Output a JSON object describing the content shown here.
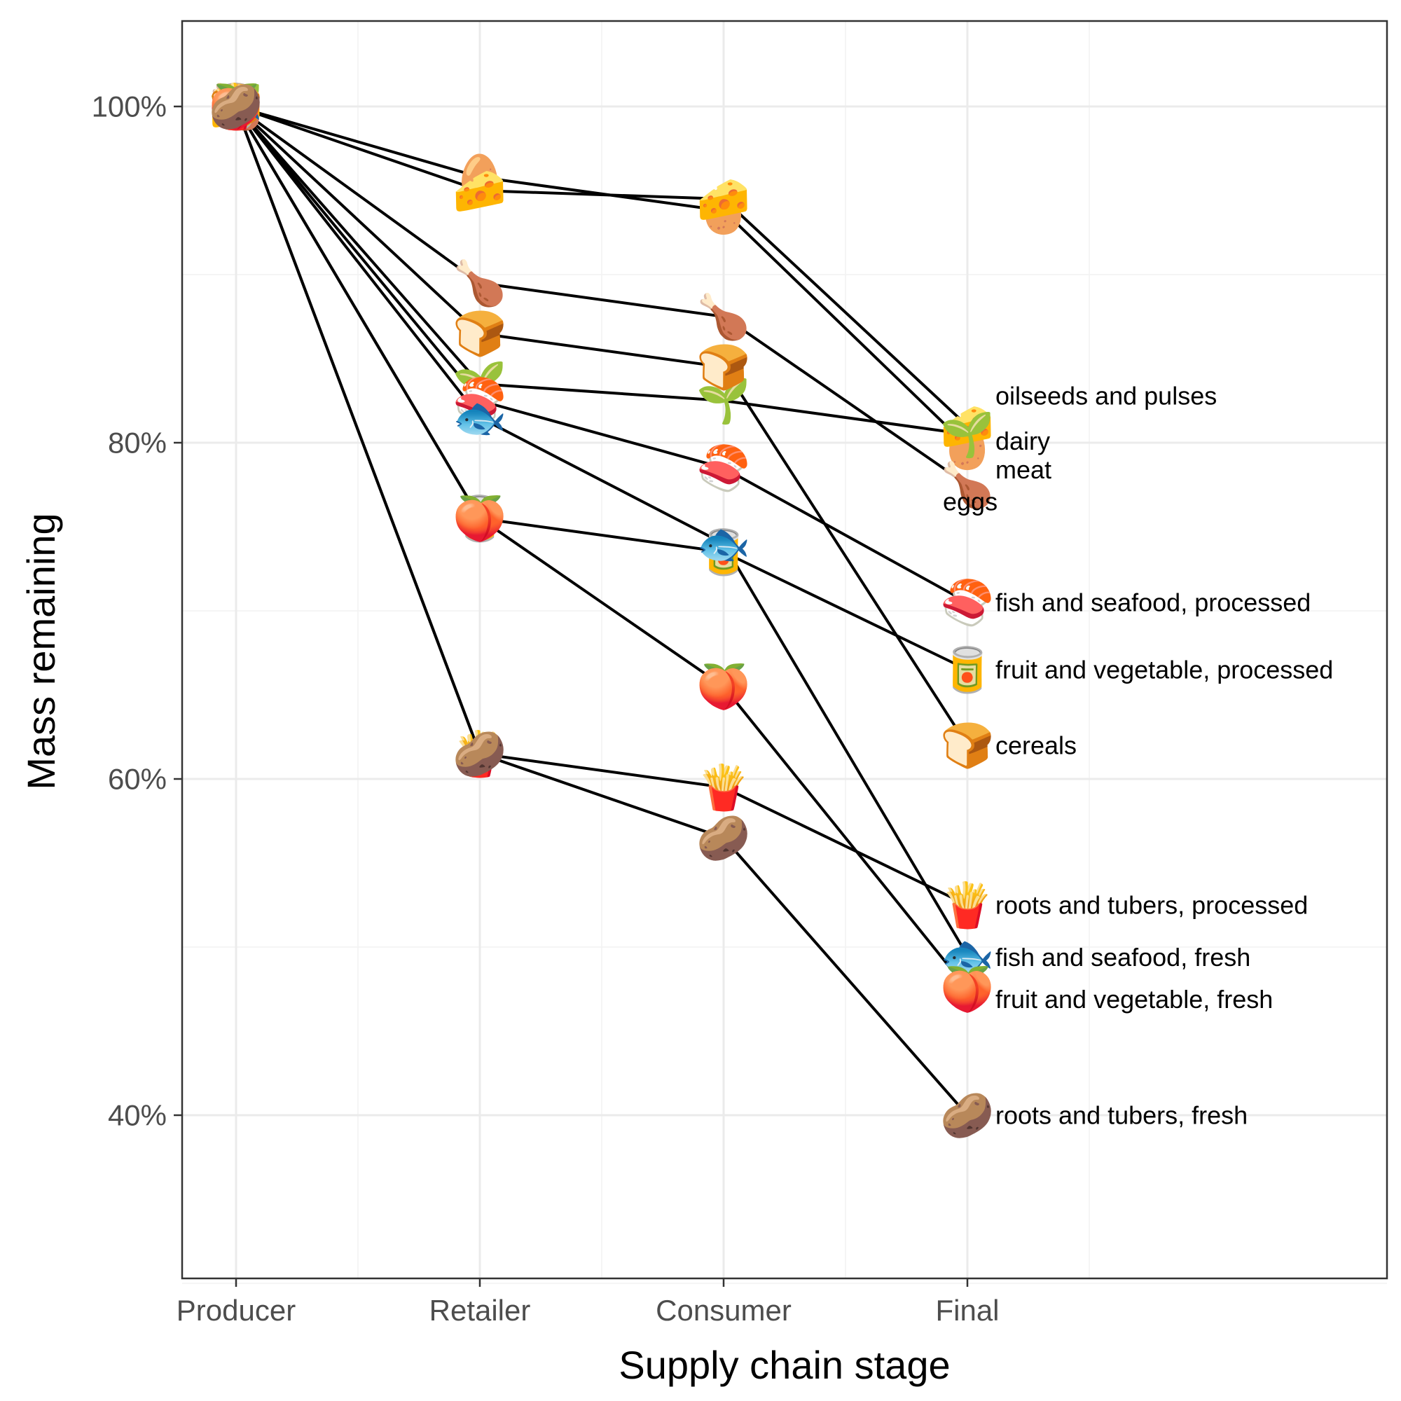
{
  "chart_data": {
    "type": "line",
    "xlabel": "Supply chain stage",
    "ylabel": "Mass remaining",
    "categories": [
      "Producer",
      "Retailer",
      "Consumer",
      "Final"
    ],
    "ylim": [
      30,
      105
    ],
    "yticks": [
      40,
      60,
      80,
      100
    ],
    "ytick_labels": [
      "40%",
      "60%",
      "80%",
      "100%"
    ],
    "grid": true,
    "colors": {
      "line": "#000000",
      "grid_major": "#ebebeb",
      "grid_minor": "#f2f2f2",
      "panel_border": "#333333"
    },
    "series": [
      {
        "name": "eggs",
        "icon": "egg-icon",
        "glyph": "🥚",
        "values": [
          100,
          95.8,
          93.8,
          79.8
        ],
        "label_offset": -3.3
      },
      {
        "name": "dairy",
        "icon": "cheese-icon",
        "glyph": "🧀",
        "values": [
          100,
          95.0,
          94.5,
          81.0
        ],
        "label_offset": -0.9
      },
      {
        "name": "oilseeds and pulses",
        "icon": "seedling-icon",
        "glyph": "🌱",
        "values": [
          100,
          83.5,
          82.5,
          80.5
        ],
        "label_offset": 2.3
      },
      {
        "name": "meat",
        "icon": "poultry-leg-icon",
        "glyph": "🍗",
        "values": [
          100,
          89.5,
          87.5,
          77.5
        ],
        "label_offset": 0.9
      },
      {
        "name": "fish and seafood, processed",
        "icon": "sushi-icon",
        "glyph": "🍣",
        "values": [
          100,
          82.5,
          78.5,
          70.5
        ],
        "label_offset": 0
      },
      {
        "name": "fruit and vegetable, processed",
        "icon": "canned-food-icon",
        "glyph": "🥫",
        "values": [
          100,
          75.5,
          73.5,
          66.5
        ],
        "label_offset": 0
      },
      {
        "name": "cereals",
        "icon": "bread-icon",
        "glyph": "🍞",
        "values": [
          100,
          86.5,
          84.5,
          62.0
        ],
        "label_offset": 0
      },
      {
        "name": "roots and tubers, processed",
        "icon": "fries-icon",
        "glyph": "🍟",
        "values": [
          100,
          61.5,
          59.5,
          52.5
        ],
        "label_offset": 0
      },
      {
        "name": "fish and seafood, fresh",
        "icon": "fish-icon",
        "glyph": "🐟",
        "values": [
          100,
          81.5,
          74.0,
          49.5
        ],
        "label_offset": -0.1
      },
      {
        "name": "fruit and vegetable, fresh",
        "icon": "peach-icon",
        "glyph": "🍑",
        "values": [
          100,
          75.5,
          65.5,
          47.5
        ],
        "label_offset": -0.6
      },
      {
        "name": "roots and tubers, fresh",
        "icon": "potato-icon",
        "glyph": "🥔",
        "values": [
          100,
          61.5,
          56.5,
          40.0
        ],
        "label_offset": 0
      }
    ]
  }
}
